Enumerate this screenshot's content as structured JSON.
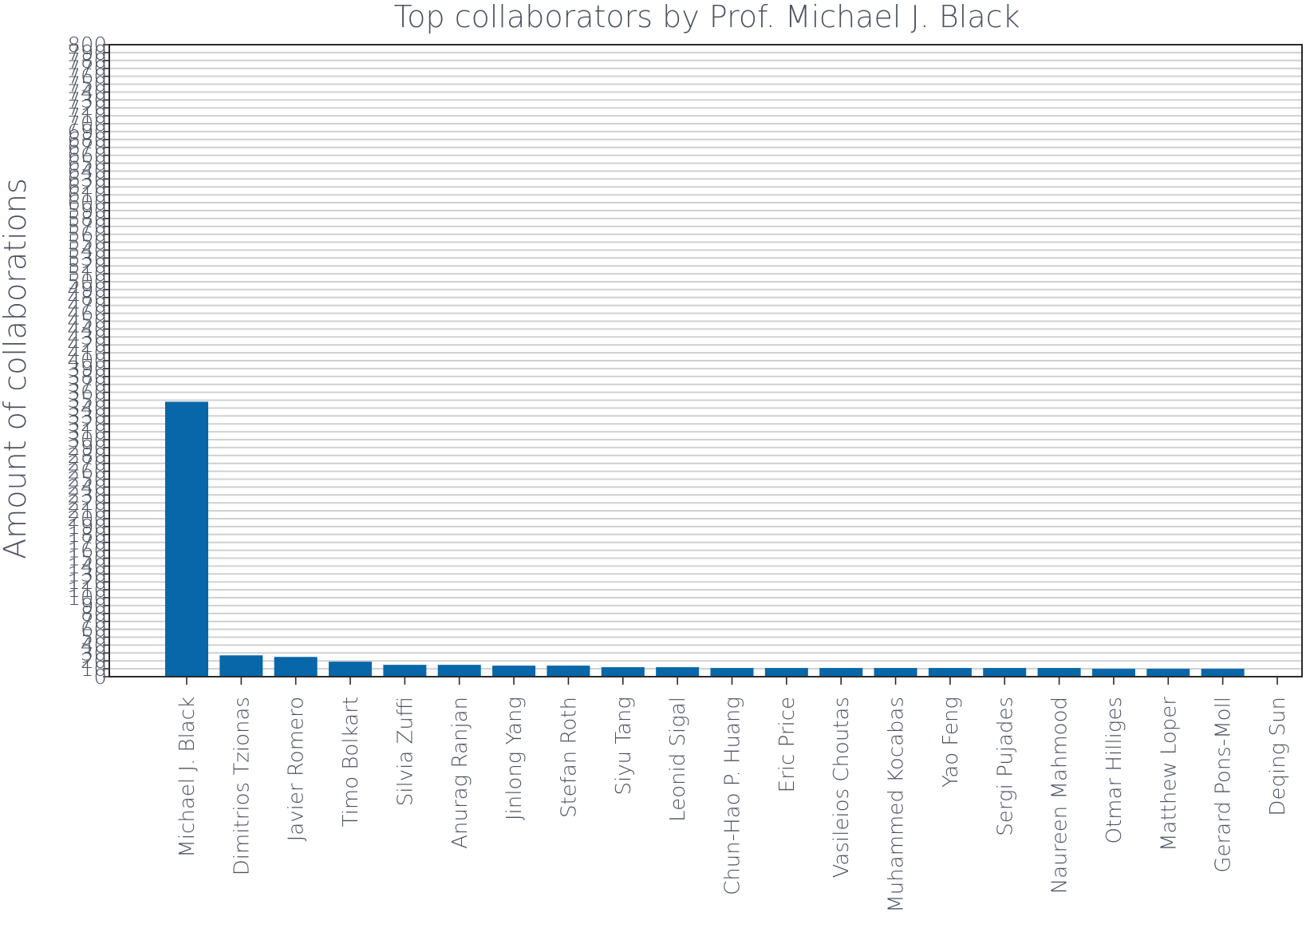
{
  "colors": {
    "bar": "#0767a8",
    "text": "#4a5160",
    "grid": "#cfd0d2",
    "axis": "#2b2b2b"
  },
  "chart_data": {
    "type": "bar",
    "title": "Top collaborators by Prof. Michael J. Black",
    "xlabel": "",
    "ylabel": "Amount of collaborations",
    "ylim": [
      0,
      800
    ],
    "grid": true,
    "legend": "none",
    "categories": [
      "Michael J. Black",
      "Dimitrios Tzionas",
      "Javier Romero",
      "Timo Bolkart",
      "Silvia Zuffi",
      "Anurag Ranjan",
      "Jinlong Yang",
      "Stefan Roth",
      "Siyu Tang",
      "Leonid Sigal",
      "Chun-Hao P. Huang",
      "Eric Price",
      "Vasileios Choutas",
      "Muhammed Kocabas",
      "Yao Feng",
      "Sergi Pujades",
      "Naureen Mahmood",
      "Otmar Hilliges",
      "Matthew Loper",
      "Gerard Pons-Moll",
      "Deqing Sun"
    ],
    "values": [
      348,
      27,
      25,
      19,
      15,
      15,
      14,
      14,
      12,
      12,
      11,
      11,
      11,
      11,
      11,
      11,
      11,
      10,
      10,
      10,
      0
    ],
    "yticks": [
      0,
      10,
      20,
      30,
      40,
      50,
      60,
      70,
      80,
      90,
      100,
      110,
      120,
      130,
      140,
      150,
      160,
      170,
      180,
      190,
      200,
      210,
      220,
      230,
      240,
      250,
      260,
      270,
      280,
      290,
      300,
      310,
      320,
      330,
      340,
      350,
      360,
      370,
      380,
      390,
      400,
      410,
      420,
      430,
      440,
      450,
      460,
      470,
      480,
      490,
      500,
      510,
      520,
      530,
      540,
      550,
      560,
      570,
      580,
      590,
      600,
      610,
      620,
      630,
      640,
      650,
      660,
      670,
      680,
      690,
      700,
      710,
      720,
      730,
      740,
      750,
      760,
      770,
      780,
      790,
      800
    ]
  }
}
